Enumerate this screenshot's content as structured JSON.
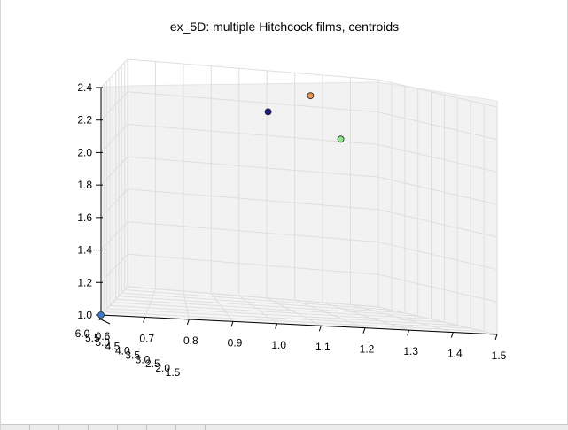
{
  "chart_data": {
    "type": "scatter",
    "title": "ex_5D: multiple Hitchcock films, centroids",
    "xlabel": "",
    "ylabel": "",
    "zlabel": "",
    "axes_3d": true,
    "grid": true,
    "x_ticks": [
      "0.6",
      "0.7",
      "0.8",
      "0.9",
      "1.0",
      "1.1",
      "1.2",
      "1.3",
      "1.4",
      "1.5"
    ],
    "y_ticks": [
      "6.0",
      "5.5",
      "5.0",
      "4.5",
      "4.0",
      "3.5",
      "3.0",
      "2.5",
      "2.0",
      "1.5"
    ],
    "z_ticks": [
      "2.4",
      "2.2",
      "2.0",
      "1.8",
      "1.6",
      "1.4",
      "1.2",
      "1.0"
    ],
    "xlim": [
      0.6,
      1.5
    ],
    "ylim": [
      1.5,
      6.0
    ],
    "zlim": [
      1.0,
      2.4
    ],
    "points": [
      {
        "x": 0.6,
        "y": 6.0,
        "z": 1.0,
        "color": "#3a7ad0"
      },
      {
        "x": 1.1,
        "y": 1.6,
        "z": 2.15,
        "color": "#1b1b8a"
      },
      {
        "x": 1.25,
        "y": 1.6,
        "z": 2.27,
        "color": "#f0924a"
      },
      {
        "x": 1.35,
        "y": 1.7,
        "z": 2.02,
        "color": "#8ee88a"
      }
    ]
  },
  "colors": {
    "pane": "#f2f2f2",
    "grid": "#dedede",
    "axis": "#000000"
  }
}
